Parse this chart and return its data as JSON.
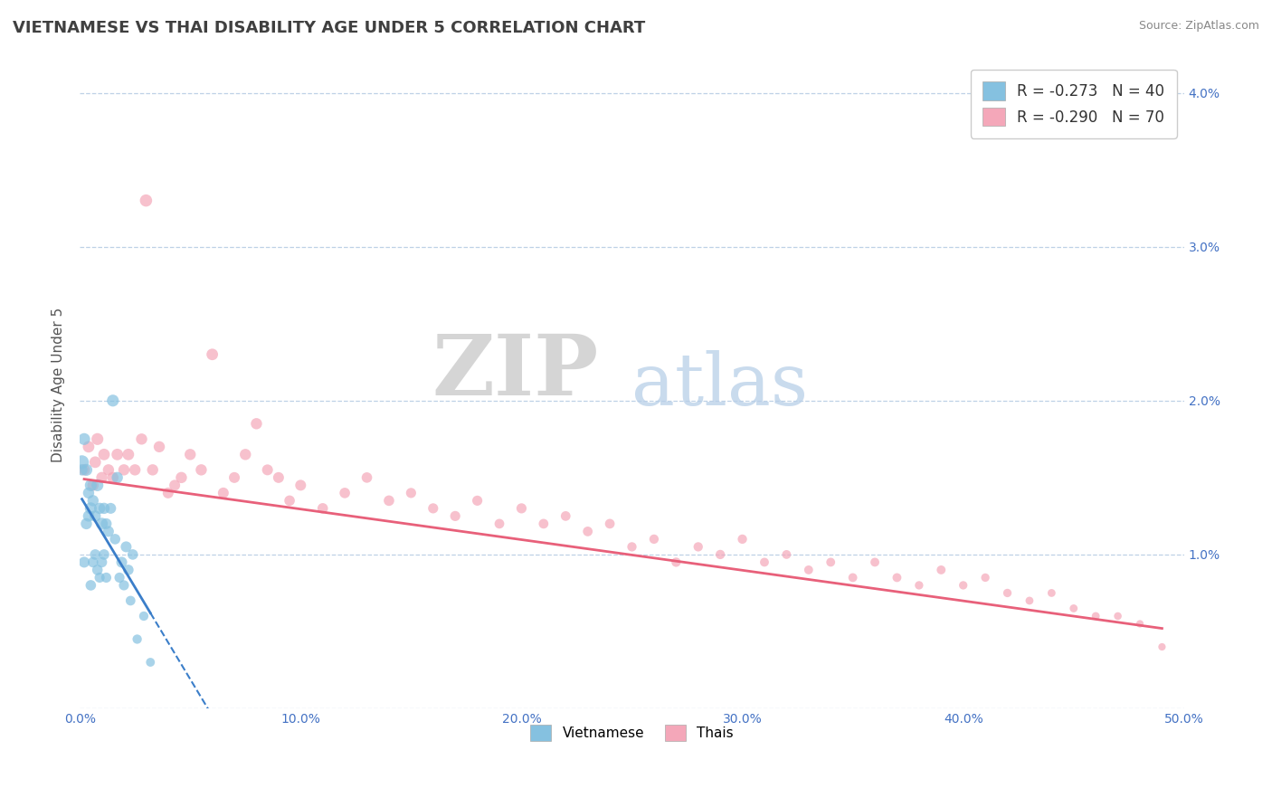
{
  "title": "VIETNAMESE VS THAI DISABILITY AGE UNDER 5 CORRELATION CHART",
  "source": "Source: ZipAtlas.com",
  "ylabel_label": "Disability Age Under 5",
  "xlim": [
    0.0,
    0.5
  ],
  "ylim": [
    0.0,
    0.042
  ],
  "xtick_labels": [
    "0.0%",
    "10.0%",
    "20.0%",
    "30.0%",
    "40.0%",
    "50.0%"
  ],
  "xtick_vals": [
    0.0,
    0.1,
    0.2,
    0.3,
    0.4,
    0.5
  ],
  "ytick_vals": [
    0.0,
    0.01,
    0.02,
    0.03,
    0.04
  ],
  "ytick_labels_right": [
    "",
    "1.0%",
    "2.0%",
    "3.0%",
    "4.0%"
  ],
  "watermark_zip": "ZIP",
  "watermark_atlas": "atlas",
  "legend_r1": "R = -0.273   N = 40",
  "legend_r2": "R = -0.290   N = 70",
  "viet_color": "#85C1E0",
  "thai_color": "#F4A7B9",
  "viet_line_color": "#3b7ec9",
  "thai_line_color": "#e8607a",
  "background_color": "#ffffff",
  "title_color": "#404040",
  "title_fontsize": 13,
  "label_fontsize": 11,
  "tick_fontsize": 10,
  "viet_scatter": {
    "x": [
      0.001,
      0.002,
      0.003,
      0.004,
      0.005,
      0.005,
      0.006,
      0.007,
      0.008,
      0.009,
      0.01,
      0.011,
      0.012,
      0.013,
      0.015,
      0.017,
      0.019,
      0.021,
      0.022,
      0.024,
      0.001,
      0.002,
      0.003,
      0.004,
      0.005,
      0.006,
      0.007,
      0.008,
      0.009,
      0.01,
      0.011,
      0.012,
      0.014,
      0.016,
      0.018,
      0.02,
      0.023,
      0.026,
      0.029,
      0.032
    ],
    "y": [
      0.016,
      0.0175,
      0.0155,
      0.014,
      0.013,
      0.0145,
      0.0135,
      0.0125,
      0.0145,
      0.013,
      0.012,
      0.013,
      0.012,
      0.0115,
      0.02,
      0.015,
      0.0095,
      0.0105,
      0.009,
      0.01,
      0.0155,
      0.0095,
      0.012,
      0.0125,
      0.008,
      0.0095,
      0.01,
      0.009,
      0.0085,
      0.0095,
      0.01,
      0.0085,
      0.013,
      0.011,
      0.0085,
      0.008,
      0.007,
      0.0045,
      0.006,
      0.003
    ],
    "sizes": [
      120,
      90,
      90,
      80,
      90,
      90,
      80,
      80,
      90,
      80,
      90,
      80,
      75,
      75,
      90,
      80,
      75,
      75,
      70,
      70,
      80,
      75,
      80,
      80,
      70,
      70,
      70,
      70,
      65,
      70,
      70,
      65,
      75,
      70,
      65,
      65,
      60,
      55,
      55,
      50
    ]
  },
  "thai_scatter": {
    "x": [
      0.002,
      0.004,
      0.006,
      0.007,
      0.008,
      0.01,
      0.011,
      0.013,
      0.015,
      0.017,
      0.02,
      0.022,
      0.025,
      0.028,
      0.03,
      0.033,
      0.036,
      0.04,
      0.043,
      0.046,
      0.05,
      0.055,
      0.06,
      0.065,
      0.07,
      0.075,
      0.08,
      0.085,
      0.09,
      0.095,
      0.1,
      0.11,
      0.12,
      0.13,
      0.14,
      0.15,
      0.16,
      0.17,
      0.18,
      0.19,
      0.2,
      0.21,
      0.22,
      0.23,
      0.24,
      0.25,
      0.26,
      0.27,
      0.28,
      0.29,
      0.3,
      0.31,
      0.32,
      0.33,
      0.34,
      0.35,
      0.36,
      0.37,
      0.38,
      0.39,
      0.4,
      0.41,
      0.42,
      0.43,
      0.44,
      0.45,
      0.46,
      0.47,
      0.48,
      0.49
    ],
    "y": [
      0.0155,
      0.017,
      0.0145,
      0.016,
      0.0175,
      0.015,
      0.0165,
      0.0155,
      0.015,
      0.0165,
      0.0155,
      0.0165,
      0.0155,
      0.0175,
      0.033,
      0.0155,
      0.017,
      0.014,
      0.0145,
      0.015,
      0.0165,
      0.0155,
      0.023,
      0.014,
      0.015,
      0.0165,
      0.0185,
      0.0155,
      0.015,
      0.0135,
      0.0145,
      0.013,
      0.014,
      0.015,
      0.0135,
      0.014,
      0.013,
      0.0125,
      0.0135,
      0.012,
      0.013,
      0.012,
      0.0125,
      0.0115,
      0.012,
      0.0105,
      0.011,
      0.0095,
      0.0105,
      0.01,
      0.011,
      0.0095,
      0.01,
      0.009,
      0.0095,
      0.0085,
      0.0095,
      0.0085,
      0.008,
      0.009,
      0.008,
      0.0085,
      0.0075,
      0.007,
      0.0075,
      0.0065,
      0.006,
      0.006,
      0.0055,
      0.004
    ],
    "sizes": [
      80,
      85,
      80,
      85,
      90,
      80,
      85,
      80,
      80,
      85,
      80,
      85,
      80,
      80,
      95,
      80,
      80,
      75,
      75,
      80,
      80,
      80,
      85,
      75,
      75,
      80,
      80,
      75,
      75,
      70,
      75,
      70,
      70,
      70,
      70,
      65,
      65,
      65,
      65,
      60,
      65,
      60,
      60,
      60,
      60,
      55,
      55,
      55,
      55,
      55,
      55,
      50,
      50,
      50,
      50,
      50,
      50,
      50,
      45,
      50,
      45,
      45,
      45,
      40,
      40,
      40,
      40,
      38,
      35,
      35
    ]
  },
  "viet_line": {
    "x_start": 0.001,
    "x_end": 0.032,
    "x_dash_end": 0.5,
    "y_start": 0.0136,
    "y_end": 0.0062
  },
  "thai_line": {
    "x_start": 0.002,
    "x_end": 0.49,
    "y_start": 0.0149,
    "y_end": 0.0052
  }
}
